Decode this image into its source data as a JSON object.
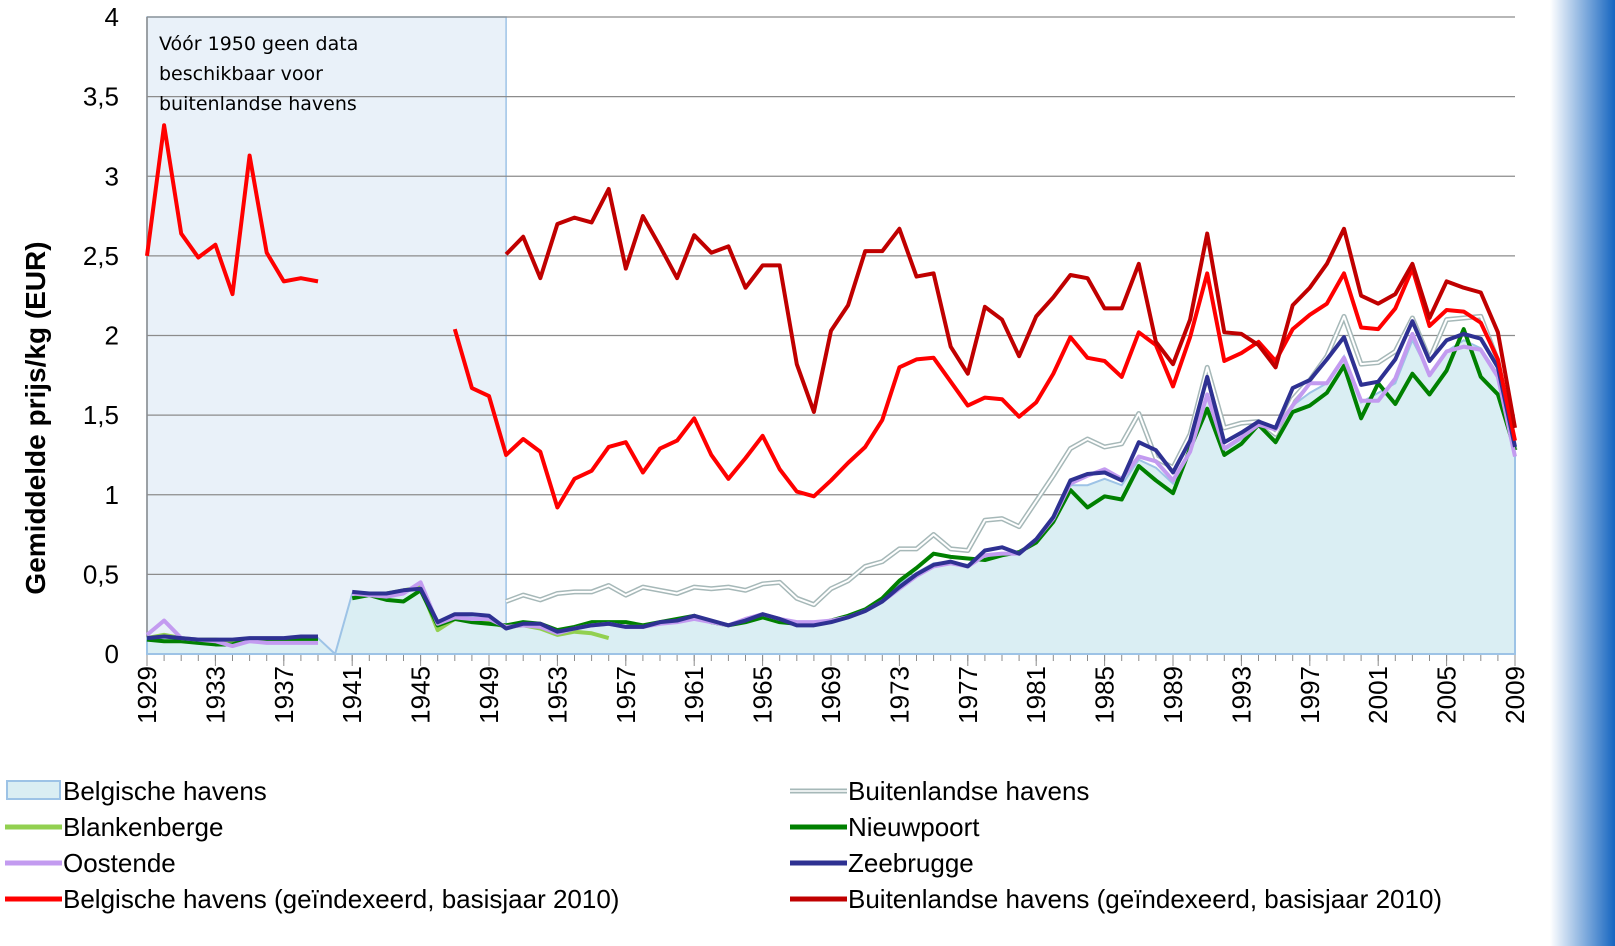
{
  "chart_data": {
    "type": "line",
    "y_label": "Gemiddelde prijs/kg (EUR)",
    "annotation": {
      "text": "Vóór 1950 geen data beschikbaar voor buitenlandse havens",
      "x_range": [
        1929,
        1950
      ]
    },
    "x": [
      1929,
      1930,
      1931,
      1932,
      1933,
      1934,
      1935,
      1936,
      1937,
      1938,
      1939,
      1940,
      1941,
      1942,
      1943,
      1944,
      1945,
      1946,
      1947,
      1948,
      1949,
      1950,
      1951,
      1952,
      1953,
      1954,
      1955,
      1956,
      1957,
      1958,
      1959,
      1960,
      1961,
      1962,
      1963,
      1964,
      1965,
      1966,
      1967,
      1968,
      1969,
      1970,
      1971,
      1972,
      1973,
      1974,
      1975,
      1976,
      1977,
      1978,
      1979,
      1980,
      1981,
      1982,
      1983,
      1984,
      1985,
      1986,
      1987,
      1988,
      1989,
      1990,
      1991,
      1992,
      1993,
      1994,
      1995,
      1996,
      1997,
      1998,
      1999,
      2000,
      2001,
      2002,
      2003,
      2004,
      2005,
      2006,
      2007,
      2008,
      2009
    ],
    "xlim": [
      1929,
      2009
    ],
    "xticks": [
      1929,
      1933,
      1937,
      1941,
      1945,
      1949,
      1953,
      1957,
      1961,
      1965,
      1969,
      1973,
      1977,
      1981,
      1985,
      1989,
      1993,
      1997,
      2001,
      2005,
      2009
    ],
    "ylim": [
      0,
      4
    ],
    "yticks": [
      0,
      {
        "value": 0.5,
        "label": "0,5"
      },
      1,
      {
        "value": 1.5,
        "label": "1,5"
      },
      2,
      {
        "value": 2.5,
        "label": "2,5"
      },
      3,
      {
        "value": 3.5,
        "label": "3,5"
      },
      4
    ],
    "grid": true,
    "series": [
      {
        "name": "Belgische havens",
        "color": "#daeef3",
        "edge_color": "#9dc3e6",
        "area": true,
        "values": [
          0.1,
          0.11,
          0.1,
          0.09,
          0.09,
          0.08,
          0.1,
          0.1,
          0.1,
          0.1,
          0.1,
          0,
          0.38,
          0.38,
          0.38,
          0.39,
          0.41,
          0.19,
          0.24,
          0.23,
          0.22,
          0.17,
          0.19,
          0.18,
          0.14,
          0.16,
          0.19,
          0.19,
          0.17,
          0.17,
          0.2,
          0.21,
          0.23,
          0.2,
          0.18,
          0.21,
          0.24,
          0.21,
          0.19,
          0.19,
          0.21,
          0.24,
          0.28,
          0.34,
          0.44,
          0.51,
          0.57,
          0.58,
          0.56,
          0.61,
          0.63,
          0.63,
          0.71,
          0.84,
          1.06,
          1.06,
          1.1,
          1.06,
          1.22,
          1.17,
          1.07,
          1.29,
          1.62,
          1.28,
          1.35,
          1.44,
          1.39,
          1.56,
          1.64,
          1.7,
          1.87,
          1.58,
          1.64,
          1.7,
          1.97,
          1.76,
          1.9,
          1.97,
          1.92,
          1.76,
          1.25
        ]
      },
      {
        "name": "Buitenlandse havens",
        "color": "#a6b8b8",
        "double": true,
        "values": [
          null,
          null,
          null,
          null,
          null,
          null,
          null,
          null,
          null,
          null,
          null,
          null,
          null,
          null,
          null,
          null,
          null,
          null,
          null,
          null,
          null,
          0.33,
          0.37,
          0.34,
          0.38,
          0.39,
          0.39,
          0.43,
          0.37,
          0.42,
          0.4,
          0.38,
          0.42,
          0.41,
          0.42,
          0.4,
          0.44,
          0.45,
          0.35,
          0.31,
          0.41,
          0.46,
          0.55,
          0.58,
          0.66,
          0.66,
          0.75,
          0.66,
          0.65,
          0.84,
          0.85,
          0.8,
          0.96,
          1.12,
          1.29,
          1.35,
          1.3,
          1.32,
          1.51,
          1.23,
          1.17,
          1.38,
          1.8,
          1.42,
          1.45,
          1.46,
          1.38,
          1.6,
          1.72,
          1.87,
          2.12,
          1.82,
          1.83,
          1.9,
          2.11,
          1.85,
          2.1,
          2.11,
          2.12,
          1.84,
          1.28
        ]
      },
      {
        "name": "Blankenberge",
        "color": "#92d050",
        "values": [
          0.1,
          0.12,
          0.1,
          0.09,
          0.09,
          0.08,
          0.09,
          0.09,
          0.09,
          0.1,
          0.1,
          null,
          0.38,
          0.38,
          0.38,
          0.4,
          0.42,
          0.15,
          0.22,
          0.22,
          0.2,
          0.17,
          0.18,
          0.16,
          0.12,
          0.14,
          0.13,
          0.1,
          null,
          null,
          null,
          null,
          null,
          null,
          null,
          null,
          null,
          null,
          null,
          null,
          null,
          null,
          null,
          null,
          null,
          null,
          null,
          null,
          null,
          null,
          null,
          null,
          null,
          null,
          null,
          null,
          null,
          null,
          null,
          null,
          null,
          null,
          null,
          null,
          null,
          null,
          null,
          null,
          null,
          null,
          null,
          null,
          null,
          null,
          null,
          null,
          null,
          null,
          null,
          null,
          null
        ]
      },
      {
        "name": "Nieuwpoort",
        "color": "#008000",
        "values": [
          0.09,
          0.08,
          0.08,
          0.07,
          0.06,
          0.06,
          0.09,
          0.09,
          0.09,
          0.09,
          0.09,
          null,
          0.35,
          0.37,
          0.34,
          0.33,
          0.4,
          0.18,
          0.22,
          0.2,
          0.19,
          0.18,
          0.2,
          0.19,
          0.15,
          0.17,
          0.2,
          0.2,
          0.2,
          0.18,
          0.2,
          0.22,
          0.24,
          0.2,
          0.18,
          0.2,
          0.23,
          0.2,
          0.19,
          0.19,
          0.21,
          0.24,
          0.28,
          0.35,
          0.46,
          0.54,
          0.63,
          0.61,
          0.6,
          0.59,
          0.62,
          0.64,
          0.7,
          0.83,
          1.03,
          0.92,
          0.99,
          0.97,
          1.18,
          1.09,
          1.01,
          1.29,
          1.54,
          1.25,
          1.32,
          1.44,
          1.33,
          1.52,
          1.56,
          1.64,
          1.81,
          1.48,
          1.7,
          1.57,
          1.76,
          1.63,
          1.78,
          2.04,
          1.74,
          1.63,
          1.28
        ]
      },
      {
        "name": "Oostende",
        "color": "#c39bf0",
        "values": [
          0.12,
          0.21,
          0.1,
          0.09,
          0.08,
          0.05,
          0.08,
          0.07,
          0.07,
          0.07,
          0.07,
          null,
          0.38,
          0.37,
          0.36,
          0.38,
          0.45,
          0.19,
          0.23,
          0.22,
          0.22,
          0.17,
          0.18,
          0.17,
          0.13,
          0.16,
          0.18,
          0.19,
          0.17,
          0.17,
          0.19,
          0.2,
          0.22,
          0.2,
          0.18,
          0.22,
          0.25,
          0.22,
          0.2,
          0.2,
          0.21,
          0.23,
          0.27,
          0.33,
          0.41,
          0.49,
          0.55,
          0.57,
          0.55,
          0.62,
          0.63,
          0.63,
          0.72,
          0.85,
          1.07,
          1.12,
          1.16,
          1.1,
          1.24,
          1.21,
          1.09,
          1.27,
          1.63,
          1.29,
          1.36,
          1.44,
          1.41,
          1.56,
          1.7,
          1.7,
          1.86,
          1.59,
          1.59,
          1.73,
          2.01,
          1.75,
          1.9,
          1.93,
          1.91,
          1.74,
          1.24
        ]
      },
      {
        "name": "Zeebrugge",
        "color": "#2e3192",
        "values": [
          0.1,
          0.11,
          0.1,
          0.09,
          0.09,
          0.09,
          0.1,
          0.1,
          0.1,
          0.11,
          0.11,
          null,
          0.39,
          0.38,
          0.38,
          0.4,
          0.41,
          0.2,
          0.25,
          0.25,
          0.24,
          0.16,
          0.19,
          0.19,
          0.14,
          0.16,
          0.18,
          0.19,
          0.17,
          0.17,
          0.2,
          0.21,
          0.24,
          0.21,
          0.18,
          0.21,
          0.25,
          0.22,
          0.18,
          0.18,
          0.2,
          0.23,
          0.27,
          0.33,
          0.42,
          0.5,
          0.56,
          0.58,
          0.55,
          0.65,
          0.67,
          0.63,
          0.72,
          0.86,
          1.09,
          1.13,
          1.14,
          1.09,
          1.33,
          1.28,
          1.14,
          1.34,
          1.74,
          1.33,
          1.39,
          1.46,
          1.42,
          1.67,
          1.72,
          1.85,
          1.99,
          1.69,
          1.71,
          1.85,
          2.09,
          1.84,
          1.97,
          2.01,
          1.98,
          1.8,
          1.3
        ]
      },
      {
        "name": "Belgische havens (geïndexeerd, basisjaar 2010)",
        "color": "#ff0000",
        "values": [
          2.5,
          3.32,
          2.64,
          2.49,
          2.57,
          2.26,
          3.13,
          2.52,
          2.34,
          2.36,
          2.34,
          null,
          null,
          null,
          null,
          null,
          null,
          null,
          2.04,
          1.67,
          1.62,
          1.25,
          1.35,
          1.27,
          0.92,
          1.1,
          1.15,
          1.3,
          1.33,
          1.14,
          1.29,
          1.34,
          1.48,
          1.25,
          1.1,
          1.23,
          1.37,
          1.16,
          1.02,
          0.99,
          1.09,
          1.2,
          1.3,
          1.47,
          1.8,
          1.85,
          1.86,
          1.71,
          1.56,
          1.61,
          1.6,
          1.49,
          1.58,
          1.76,
          1.99,
          1.86,
          1.84,
          1.74,
          2.02,
          1.94,
          1.68,
          1.99,
          2.39,
          1.84,
          1.89,
          1.96,
          1.84,
          2.04,
          2.13,
          2.2,
          2.39,
          2.05,
          2.04,
          2.17,
          2.42,
          2.06,
          2.16,
          2.15,
          2.08,
          1.85,
          1.34
        ]
      },
      {
        "name": "Buitenlandse havens (geïndexeerd, basisjaar 2010)",
        "color": "#c00000",
        "values": [
          null,
          null,
          null,
          null,
          null,
          null,
          null,
          null,
          null,
          null,
          null,
          null,
          null,
          null,
          null,
          null,
          null,
          null,
          null,
          null,
          null,
          2.51,
          2.62,
          2.36,
          2.7,
          2.74,
          2.71,
          2.92,
          2.42,
          2.75,
          2.56,
          2.36,
          2.63,
          2.52,
          2.56,
          2.3,
          2.44,
          2.44,
          1.82,
          1.52,
          2.03,
          2.19,
          2.53,
          2.53,
          2.67,
          2.37,
          2.39,
          1.93,
          1.76,
          2.18,
          2.1,
          1.87,
          2.12,
          2.24,
          2.38,
          2.36,
          2.17,
          2.17,
          2.45,
          1.96,
          1.82,
          2.1,
          2.64,
          2.02,
          2.01,
          1.94,
          1.8,
          2.19,
          2.3,
          2.45,
          2.67,
          2.25,
          2.2,
          2.26,
          2.45,
          2.11,
          2.34,
          2.3,
          2.27,
          2.02,
          1.42
        ]
      }
    ]
  }
}
